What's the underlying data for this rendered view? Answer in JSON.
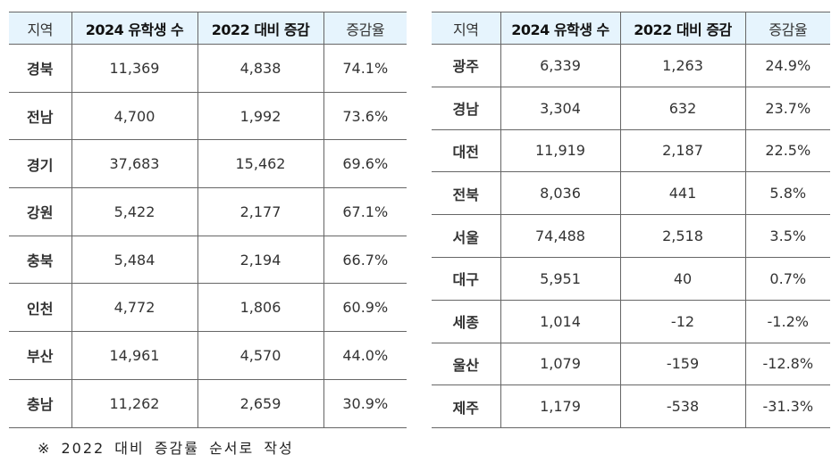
{
  "headers": {
    "region": "지역",
    "students_2024": "2024 유학생 수",
    "change_vs_2022": "2022 대비 증감",
    "rate": "증감율"
  },
  "left_table": [
    {
      "region": "경북",
      "students": "11,369",
      "change": "4,838",
      "rate": "74.1%"
    },
    {
      "region": "전남",
      "students": "4,700",
      "change": "1,992",
      "rate": "73.6%"
    },
    {
      "region": "경기",
      "students": "37,683",
      "change": "15,462",
      "rate": "69.6%"
    },
    {
      "region": "강원",
      "students": "5,422",
      "change": "2,177",
      "rate": "67.1%"
    },
    {
      "region": "충북",
      "students": "5,484",
      "change": "2,194",
      "rate": "66.7%"
    },
    {
      "region": "인천",
      "students": "4,772",
      "change": "1,806",
      "rate": "60.9%"
    },
    {
      "region": "부산",
      "students": "14,961",
      "change": "4,570",
      "rate": "44.0%"
    },
    {
      "region": "충남",
      "students": "11,262",
      "change": "2,659",
      "rate": "30.9%"
    }
  ],
  "right_table": [
    {
      "region": "광주",
      "students": "6,339",
      "change": "1,263",
      "rate": "24.9%"
    },
    {
      "region": "경남",
      "students": "3,304",
      "change": "632",
      "rate": "23.7%"
    },
    {
      "region": "대전",
      "students": "11,919",
      "change": "2,187",
      "rate": "22.5%"
    },
    {
      "region": "전북",
      "students": "8,036",
      "change": "441",
      "rate": "5.8%"
    },
    {
      "region": "서울",
      "students": "74,488",
      "change": "2,518",
      "rate": "3.5%"
    },
    {
      "region": "대구",
      "students": "5,951",
      "change": "40",
      "rate": "0.7%"
    },
    {
      "region": "세종",
      "students": "1,014",
      "change": "-12",
      "rate": "-1.2%"
    },
    {
      "region": "울산",
      "students": "1,079",
      "change": "-159",
      "rate": "-12.8%"
    },
    {
      "region": "제주",
      "students": "1,179",
      "change": "-538",
      "rate": "-31.3%"
    }
  ],
  "note": "※ 2022 대비 증감률 순서로 작성"
}
